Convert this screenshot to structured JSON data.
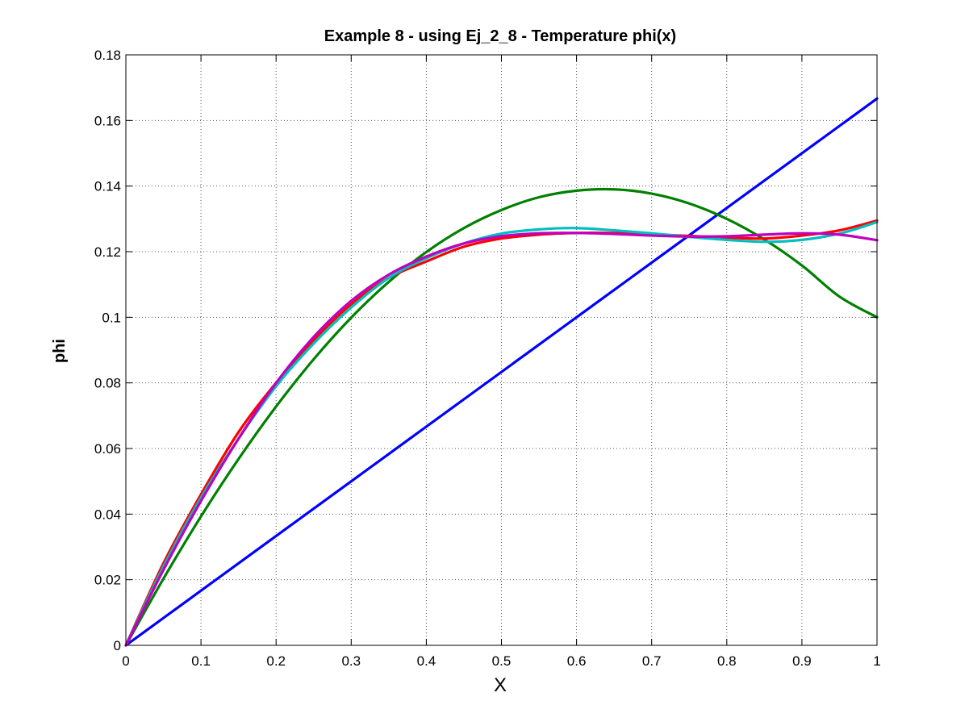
{
  "chart_data": {
    "type": "line",
    "title": "Example 8 - using Ej_2_8 - Temperature phi(x)",
    "xlabel": "X",
    "ylabel": "phi",
    "xlim": [
      0,
      1
    ],
    "ylim": [
      0,
      0.18
    ],
    "grid": true,
    "x_ticks": [
      "0",
      "0.1",
      "0.2",
      "0.3",
      "0.4",
      "0.5",
      "0.6",
      "0.7",
      "0.8",
      "0.9",
      "1"
    ],
    "y_ticks": [
      "0",
      "0.02",
      "0.04",
      "0.06",
      "0.08",
      "0.1",
      "0.12",
      "0.14",
      "0.16",
      "0.18"
    ],
    "x_tick_values": [
      0,
      0.1,
      0.2,
      0.3,
      0.4,
      0.5,
      0.6,
      0.7,
      0.8,
      0.9,
      1
    ],
    "y_tick_values": [
      0,
      0.02,
      0.04,
      0.06,
      0.08,
      0.1,
      0.12,
      0.14,
      0.16,
      0.18
    ],
    "x": [
      0,
      0.05,
      0.1,
      0.15,
      0.2,
      0.25,
      0.3,
      0.35,
      0.4,
      0.45,
      0.5,
      0.55,
      0.6,
      0.65,
      0.7,
      0.75,
      0.8,
      0.85,
      0.9,
      0.95,
      1
    ],
    "series": [
      {
        "color": "#0000ff",
        "values": [
          0,
          0.00833,
          0.01667,
          0.025,
          0.03333,
          0.04167,
          0.05,
          0.05833,
          0.06667,
          0.075,
          0.08333,
          0.09167,
          0.1,
          0.10833,
          0.11667,
          0.125,
          0.13333,
          0.14167,
          0.15,
          0.15833,
          0.16667
        ]
      },
      {
        "color": "#008000",
        "values": [
          0,
          0.0203,
          0.0393,
          0.0568,
          0.0728,
          0.0872,
          0.0999,
          0.1108,
          0.1199,
          0.1272,
          0.1327,
          0.1366,
          0.1386,
          0.139,
          0.1377,
          0.1347,
          0.13,
          0.1237,
          0.1158,
          0.1063,
          0.1
        ]
      },
      {
        "color": "#ff0000",
        "values": [
          0,
          0.025,
          0.046,
          0.065,
          0.08,
          0.093,
          0.104,
          0.112,
          0.117,
          0.1215,
          0.124,
          0.1252,
          0.1257,
          0.1257,
          0.1253,
          0.1248,
          0.1243,
          0.124,
          0.1249,
          0.1265,
          0.1295
        ]
      },
      {
        "color": "#00bfbf",
        "values": [
          0,
          0.024,
          0.045,
          0.063,
          0.079,
          0.092,
          0.103,
          0.112,
          0.118,
          0.1225,
          0.1255,
          0.1268,
          0.1272,
          0.1265,
          0.1256,
          0.1245,
          0.1236,
          0.123,
          0.1236,
          0.1255,
          0.129
        ]
      },
      {
        "color": "#bf00bf",
        "values": [
          0,
          0.023,
          0.044,
          0.063,
          0.08,
          0.094,
          0.105,
          0.113,
          0.1185,
          0.1225,
          0.1247,
          0.1256,
          0.1257,
          0.1254,
          0.1249,
          0.1246,
          0.1247,
          0.1252,
          0.1256,
          0.1252,
          0.1235
        ]
      }
    ]
  }
}
